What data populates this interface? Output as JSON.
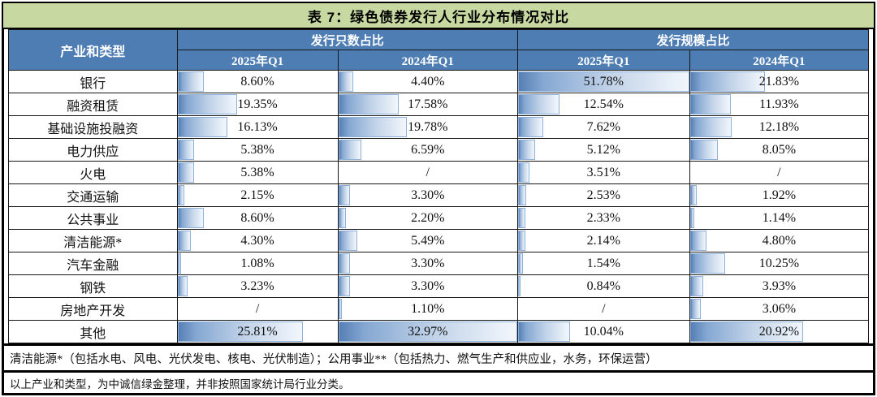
{
  "title": "表 7：绿色债券发行人行业分布情况对比",
  "table": {
    "corner_header": "产业和类型",
    "group_headers": [
      "发行只数占比",
      "发行规模占比"
    ],
    "sub_headers": [
      "2025年Q1",
      "2024年Q1",
      "2025年Q1",
      "2024年Q1"
    ]
  },
  "chart_data": {
    "type": "table",
    "title": "表 7：绿色债券发行人行业分布情况对比",
    "column_groups": [
      "发行只数占比",
      "发行规模占比"
    ],
    "columns": [
      "发行只数占比 2025年Q1",
      "发行只数占比 2024年Q1",
      "发行规模占比 2025年Q1",
      "发行规模占比 2024年Q1"
    ],
    "rows": [
      {
        "label": "银行",
        "values": [
          "8.60%",
          "4.40%",
          "51.78%",
          "21.83%"
        ]
      },
      {
        "label": "融资租赁",
        "values": [
          "19.35%",
          "17.58%",
          "12.54%",
          "11.93%"
        ]
      },
      {
        "label": "基础设施投融资",
        "values": [
          "16.13%",
          "19.78%",
          "7.62%",
          "12.18%"
        ]
      },
      {
        "label": "电力供应",
        "values": [
          "5.38%",
          "6.59%",
          "5.12%",
          "8.05%"
        ]
      },
      {
        "label": "火电",
        "values": [
          "5.38%",
          "/",
          "3.51%",
          "/"
        ]
      },
      {
        "label": "交通运输",
        "values": [
          "2.15%",
          "3.30%",
          "2.53%",
          "1.92%"
        ]
      },
      {
        "label": "公共事业",
        "values": [
          "8.60%",
          "2.20%",
          "2.33%",
          "1.14%"
        ]
      },
      {
        "label": "清洁能源*",
        "values": [
          "4.30%",
          "5.49%",
          "2.14%",
          "4.80%"
        ]
      },
      {
        "label": "汽车金融",
        "values": [
          "1.08%",
          "3.30%",
          "1.54%",
          "10.25%"
        ]
      },
      {
        "label": "钢铁",
        "values": [
          "3.23%",
          "3.30%",
          "0.84%",
          "3.93%"
        ]
      },
      {
        "label": "房地产开发",
        "values": [
          "/",
          "1.10%",
          "/",
          "3.06%"
        ]
      },
      {
        "label": "其他",
        "values": [
          "25.81%",
          "32.97%",
          "10.04%",
          "20.92%"
        ],
        "scale_max": 32.97
      }
    ],
    "bar_scale": {
      "default_max": 51.78
    },
    "layout_hints": {
      "bars": "in-cell horizontal data bars, gradient fill, left-aligned",
      "missing_value_marker": "/"
    }
  },
  "notes": [
    "清洁能源*（包括水电、风电、光伏发电、核电、光伏制造）；公用事业**（包括热力、燃气生产和供应业，水务，环保运营）",
    "以上产业和类型，为中诚信绿金整理，并非按照国家统计局行业分类。"
  ],
  "colors": {
    "title_bg": "#c7d9a0",
    "header_bg": "#4d7db3",
    "header_text": "#ffffff",
    "bar_fill_start": "#567fb4",
    "bar_fill_end": "#f2f6fb",
    "bar_border": "#8fb0d8",
    "frame_border": "#000000"
  }
}
